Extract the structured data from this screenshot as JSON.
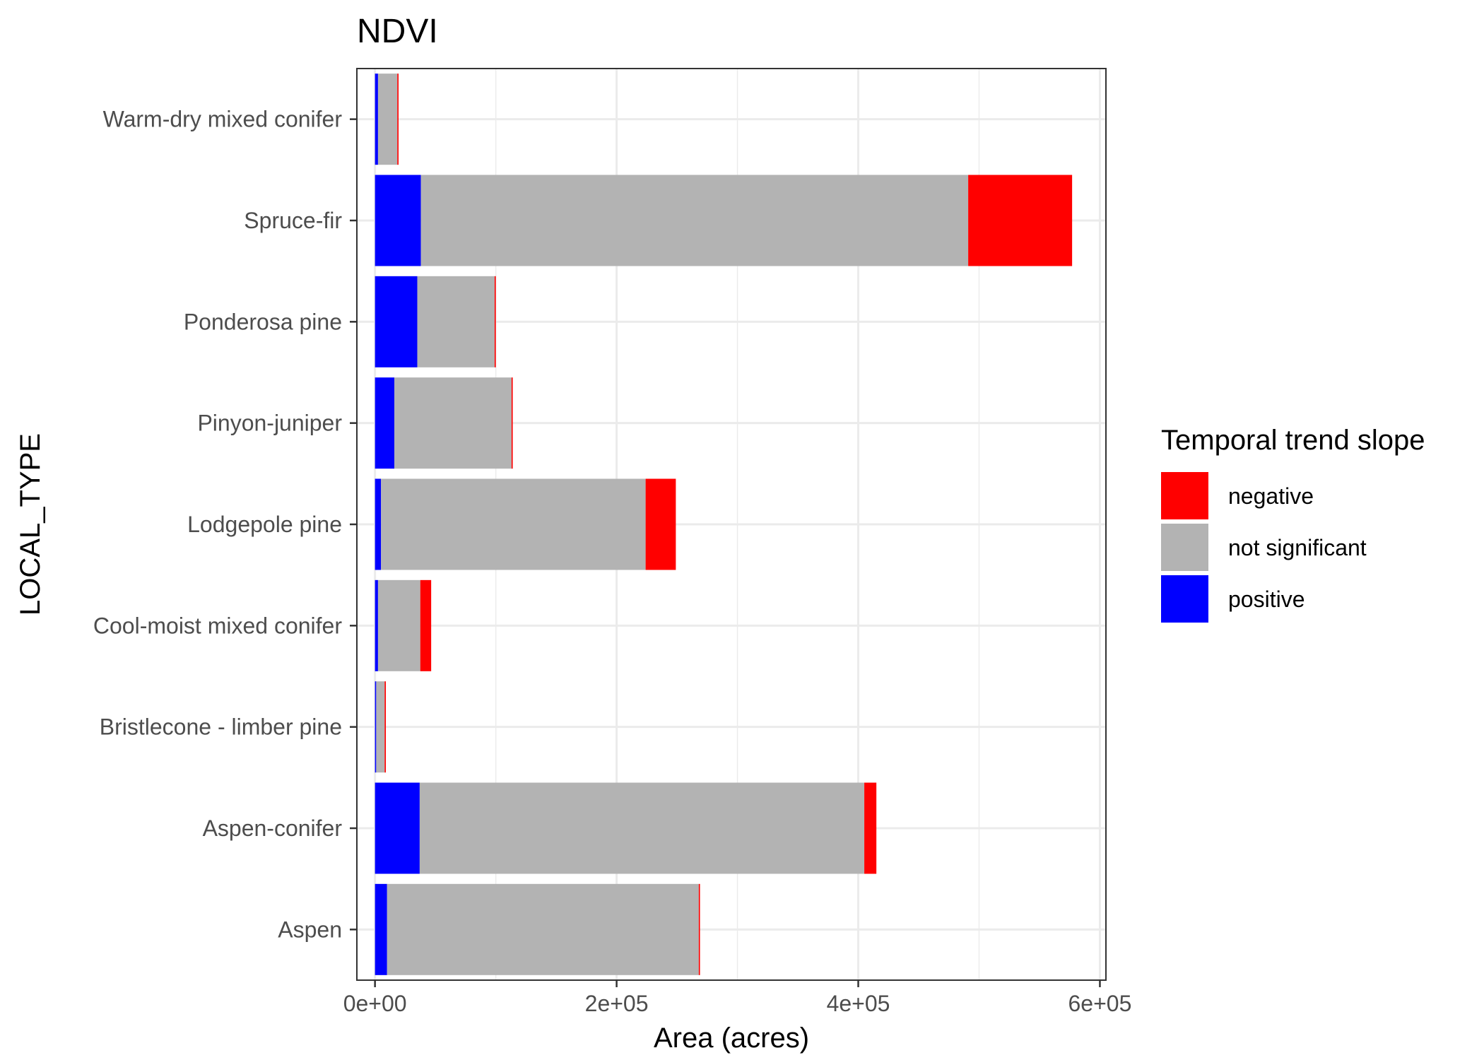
{
  "chart_data": {
    "type": "bar",
    "orientation": "horizontal",
    "stacked": true,
    "title": "NDVI",
    "xlabel": "Area (acres)",
    "ylabel": "LOCAL_TYPE",
    "xlim": [
      -15000,
      605000
    ],
    "x_ticks": [
      0,
      200000,
      400000,
      600000
    ],
    "x_tick_labels": [
      "0e+00",
      "2e+05",
      "4e+05",
      "6e+05"
    ],
    "grid": true,
    "legend": {
      "title": "Temporal trend slope",
      "position": "right"
    },
    "categories": [
      "Aspen",
      "Aspen-conifer",
      "Bristlecone - limber pine",
      "Cool-moist mixed conifer",
      "Lodgepole pine",
      "Pinyon-juniper",
      "Ponderosa pine",
      "Spruce-fir",
      "Warm-dry mixed conifer"
    ],
    "series": [
      {
        "name": "positive",
        "color": "#0000FF",
        "values": [
          10000,
          37000,
          1000,
          2500,
          5000,
          16000,
          35000,
          38000,
          2500
        ]
      },
      {
        "name": "not significant",
        "color": "#B3B3B3",
        "values": [
          258000,
          368000,
          7000,
          35000,
          219000,
          97000,
          64000,
          453000,
          16000
        ]
      },
      {
        "name": "negative",
        "color": "#FF0000",
        "values": [
          1000,
          10000,
          1000,
          9000,
          25000,
          1000,
          1000,
          86000,
          1000
        ]
      }
    ],
    "legend_order": [
      "negative",
      "not significant",
      "positive"
    ]
  }
}
